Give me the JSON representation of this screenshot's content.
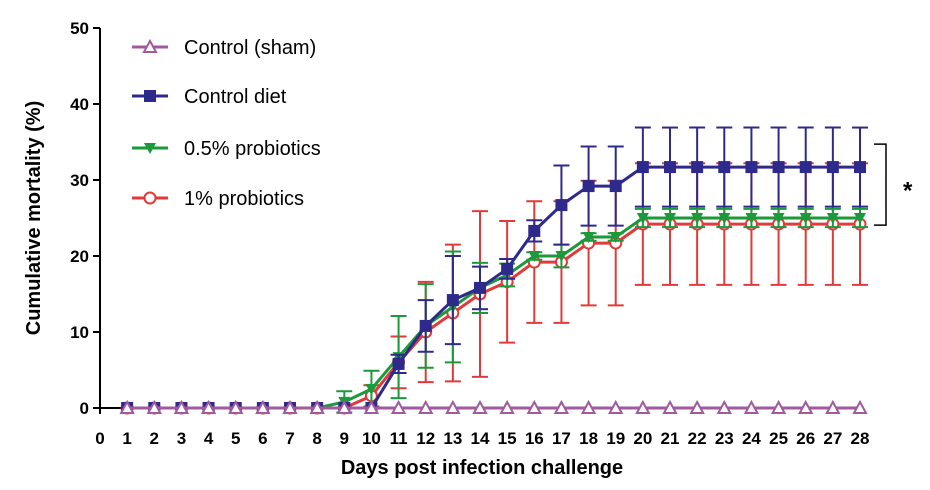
{
  "chart_data": {
    "type": "line",
    "xlabel": "Days post infection challenge",
    "ylabel": "Cumulative mortality (%)",
    "xlim": [
      0,
      28
    ],
    "ylim": [
      0,
      50
    ],
    "x_ticks": [
      0,
      1,
      2,
      3,
      4,
      5,
      6,
      7,
      8,
      9,
      10,
      11,
      12,
      13,
      14,
      15,
      16,
      17,
      18,
      19,
      20,
      21,
      22,
      23,
      24,
      25,
      26,
      27,
      28
    ],
    "y_ticks": [
      0,
      10,
      20,
      30,
      40,
      50
    ],
    "grid": false,
    "legend_position": "top-left",
    "series": [
      {
        "name": "Control (sham)",
        "color": "#a05a9e",
        "marker": "open-triangle-up",
        "x": [
          1,
          2,
          3,
          4,
          5,
          6,
          7,
          8,
          9,
          10,
          11,
          12,
          13,
          14,
          15,
          16,
          17,
          18,
          19,
          20,
          21,
          22,
          23,
          24,
          25,
          26,
          27,
          28
        ],
        "values": [
          0,
          0,
          0,
          0,
          0,
          0,
          0,
          0,
          0,
          0,
          0,
          0,
          0,
          0,
          0,
          0,
          0,
          0,
          0,
          0,
          0,
          0,
          0,
          0,
          0,
          0,
          0,
          0
        ],
        "error": [
          0,
          0,
          0,
          0,
          0,
          0,
          0,
          0,
          0,
          0,
          0,
          0,
          0,
          0,
          0,
          0,
          0,
          0,
          0,
          0,
          0,
          0,
          0,
          0,
          0,
          0,
          0,
          0
        ]
      },
      {
        "name": "Control diet",
        "color": "#2e2a8c",
        "marker": "filled-square",
        "x": [
          1,
          2,
          3,
          4,
          5,
          6,
          7,
          8,
          9,
          10,
          11,
          12,
          13,
          14,
          15,
          16,
          17,
          18,
          19,
          20,
          21,
          22,
          23,
          24,
          25,
          26,
          27,
          28
        ],
        "values": [
          0,
          0,
          0,
          0,
          0,
          0,
          0,
          0,
          0,
          0,
          5.8,
          10.8,
          14.2,
          15.8,
          18.3,
          23.3,
          26.7,
          29.2,
          29.2,
          31.7,
          31.7,
          31.7,
          31.7,
          31.7,
          31.7,
          31.7,
          31.7,
          31.7
        ],
        "error": [
          0,
          0,
          0,
          0,
          0,
          0,
          0,
          0,
          0,
          0,
          1.2,
          3.4,
          5.8,
          2.8,
          1.3,
          1.4,
          5.2,
          5.2,
          5.2,
          5.2,
          5.2,
          5.2,
          5.2,
          5.2,
          5.2,
          5.2,
          5.2,
          5.2
        ]
      },
      {
        "name": "0.5% probiotics",
        "color": "#1a9a3a",
        "marker": "filled-triangle-down",
        "x": [
          1,
          2,
          3,
          4,
          5,
          6,
          7,
          8,
          9,
          10,
          11,
          12,
          13,
          14,
          15,
          16,
          17,
          18,
          19,
          20,
          21,
          22,
          23,
          24,
          25,
          26,
          27,
          28
        ],
        "values": [
          0,
          0,
          0,
          0,
          0,
          0,
          0,
          0,
          0.8,
          2.5,
          6.7,
          10.8,
          13.3,
          15.8,
          17.5,
          20,
          20,
          22.5,
          22.5,
          25,
          25,
          25,
          25,
          25,
          25,
          25,
          25,
          25
        ],
        "error": [
          0,
          0,
          0,
          0,
          0,
          0,
          0,
          0,
          1.4,
          2.4,
          5.4,
          5.5,
          7.3,
          3.3,
          1.5,
          0.5,
          1.5,
          0.5,
          0.5,
          1.2,
          1.2,
          1.2,
          1.2,
          1.2,
          1.2,
          1.2,
          1.2,
          1.2
        ]
      },
      {
        "name": "1% probiotics",
        "color": "#e03a3a",
        "marker": "open-circle",
        "x": [
          1,
          2,
          3,
          4,
          5,
          6,
          7,
          8,
          9,
          10,
          11,
          12,
          13,
          14,
          15,
          16,
          17,
          18,
          19,
          20,
          21,
          22,
          23,
          24,
          25,
          26,
          27,
          28
        ],
        "values": [
          0,
          0,
          0,
          0,
          0,
          0,
          0,
          0,
          0,
          1.6,
          6.0,
          10.0,
          12.5,
          15.0,
          16.6,
          19.2,
          19.2,
          21.7,
          21.7,
          24.2,
          24.2,
          24.2,
          24.2,
          24.2,
          24.2,
          24.2,
          24.2,
          24.2
        ],
        "error": [
          0,
          0,
          0,
          0,
          0,
          0,
          0,
          0,
          0,
          1.4,
          3.4,
          6.6,
          9.0,
          10.9,
          8.0,
          8.0,
          8.0,
          8.2,
          8.2,
          8.0,
          8.0,
          8.0,
          8.0,
          8.0,
          8.0,
          8.0,
          8.0,
          8.0
        ]
      }
    ],
    "annotations": [
      {
        "text": "*",
        "between": [
          "Control diet",
          "1% probiotics"
        ],
        "at_x": 28
      }
    ]
  }
}
